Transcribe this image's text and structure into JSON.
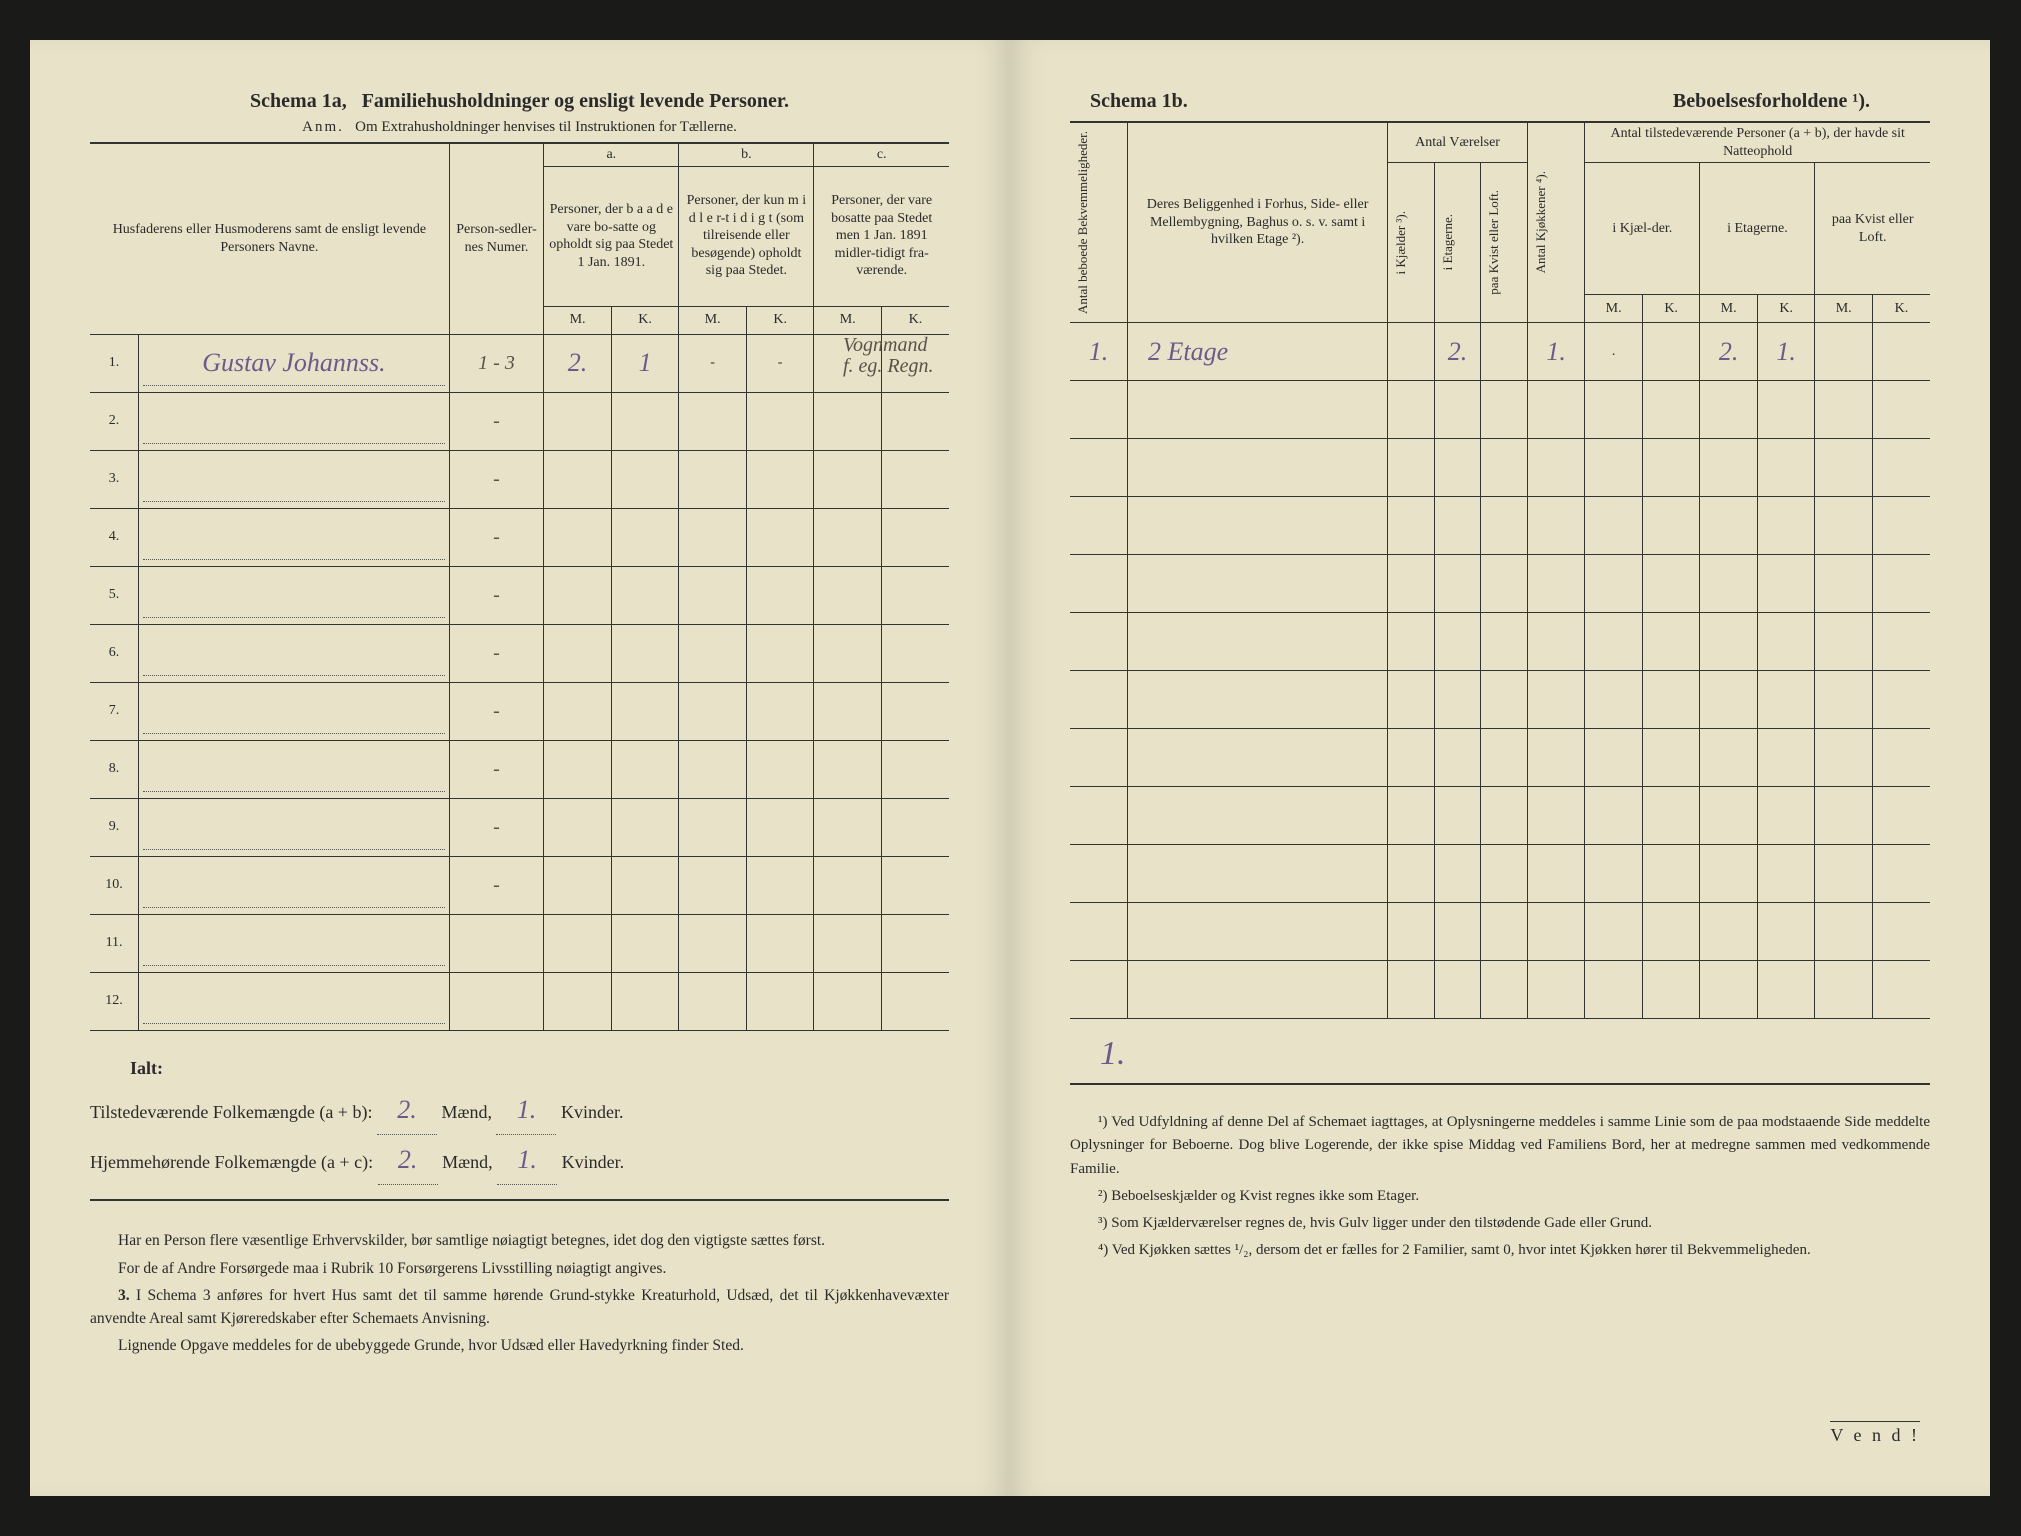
{
  "left": {
    "schema_label": "Schema 1a,",
    "title": "Familiehusholdninger og ensligt levende Personer.",
    "anm_label": "Anm.",
    "anm_text": "Om Extrahusholdninger henvises til Instruktionen for Tællerne.",
    "col_name": "Husfaderens eller Husmoderens samt de ensligt levende Personers Navne.",
    "col_numer": "Person-sedler-nes Numer.",
    "col_a_label": "a.",
    "col_a": "Personer, der b a a d e vare bo-satte og opholdt sig paa Stedet 1 Jan. 1891.",
    "col_b_label": "b.",
    "col_b": "Personer, der kun m i d l e r-t i d i g t (som tilreisende eller besøgende) opholdt sig paa Stedet.",
    "col_c_label": "c.",
    "col_c": "Personer, der vare bosatte paa Stedet men 1 Jan. 1891 midler-tidigt fra-værende.",
    "mk_m": "M.",
    "mk_k": "K.",
    "rows": [
      {
        "n": "1.",
        "name": "Gustav Johannss.",
        "numer": "1 - 3",
        "am": "2.",
        "ak": "1",
        "bm": "-",
        "bk": "-",
        "cm": "-",
        "ck": "-",
        "note1": "Vognmand",
        "note2": "f. eg. Regn."
      },
      {
        "n": "2.",
        "name": "",
        "numer": "-",
        "am": "",
        "ak": "",
        "bm": "",
        "bk": "",
        "cm": "",
        "ck": ""
      },
      {
        "n": "3.",
        "name": "",
        "numer": "-",
        "am": "",
        "ak": "",
        "bm": "",
        "bk": "",
        "cm": "",
        "ck": ""
      },
      {
        "n": "4.",
        "name": "",
        "numer": "-",
        "am": "",
        "ak": "",
        "bm": "",
        "bk": "",
        "cm": "",
        "ck": ""
      },
      {
        "n": "5.",
        "name": "",
        "numer": "-",
        "am": "",
        "ak": "",
        "bm": "",
        "bk": "",
        "cm": "",
        "ck": ""
      },
      {
        "n": "6.",
        "name": "",
        "numer": "-",
        "am": "",
        "ak": "",
        "bm": "",
        "bk": "",
        "cm": "",
        "ck": ""
      },
      {
        "n": "7.",
        "name": "",
        "numer": "-",
        "am": "",
        "ak": "",
        "bm": "",
        "bk": "",
        "cm": "",
        "ck": ""
      },
      {
        "n": "8.",
        "name": "",
        "numer": "-",
        "am": "",
        "ak": "",
        "bm": "",
        "bk": "",
        "cm": "",
        "ck": ""
      },
      {
        "n": "9.",
        "name": "",
        "numer": "-",
        "am": "",
        "ak": "",
        "bm": "",
        "bk": "",
        "cm": "",
        "ck": ""
      },
      {
        "n": "10.",
        "name": "",
        "numer": "-",
        "am": "",
        "ak": "",
        "bm": "",
        "bk": "",
        "cm": "",
        "ck": ""
      },
      {
        "n": "11.",
        "name": "",
        "numer": "",
        "am": "",
        "ak": "",
        "bm": "",
        "bk": "",
        "cm": "",
        "ck": ""
      },
      {
        "n": "12.",
        "name": "",
        "numer": "",
        "am": "",
        "ak": "",
        "bm": "",
        "bk": "",
        "cm": "",
        "ck": ""
      }
    ],
    "ialt": "Ialt:",
    "tilst_label": "Tilstedeværende Folkemængde (a + b):",
    "hjemme_label": "Hjemmehørende Folkemængde (a + c):",
    "maend": "Mænd,",
    "kvinder": "Kvinder.",
    "tilst_m": "2.",
    "tilst_k": "1.",
    "hjem_m": "2.",
    "hjem_k": "1.",
    "foot_p1": "Har en Person flere væsentlige Erhvervskilder, bør samtlige nøiagtigt betegnes, idet dog den vigtigste sættes først.",
    "foot_p2": "For de af Andre Forsørgede maa i Rubrik 10 Forsørgerens Livsstilling nøiagtigt angives.",
    "foot_p3a": "3.",
    "foot_p3": "I Schema 3 anføres for hvert Hus samt det til samme hørende Grund-stykke Kreaturhold, Udsæd, det til Kjøkkenhavevæxter anvendte Areal samt Kjøreredskaber efter Schemaets Anvisning.",
    "foot_p4": "Lignende Opgave meddeles for de ubebyggede Grunde, hvor Udsæd eller Havedyrkning finder Sted."
  },
  "right": {
    "schema_label": "Schema 1b.",
    "title": "Beboelsesforholdene ¹).",
    "col_antal_bekvem": "Antal beboede Bekvemmeligheder.",
    "col_belig": "Deres Beliggenhed i Forhus, Side- eller Mellembygning, Baghus o. s. v. samt i hvilken Etage ²).",
    "col_vaer": "Antal Værelser",
    "col_kjok": "Antal Kjøkkener ⁴).",
    "col_natte": "Antal tilstedeværende Personer (a + b), der havde sit Natteophold",
    "sub_kjaelder": "i Kjælder ³).",
    "sub_etagerne": "i Etagerne.",
    "sub_kvist": "paa Kvist eller Loft.",
    "sub_n_kjael": "i Kjæl-der.",
    "sub_n_etag": "i Etagerne.",
    "sub_n_kvist": "paa Kvist eller Loft.",
    "mk_m": "M.",
    "mk_k": "K.",
    "row1": {
      "bekvem": "1.",
      "belig": "2 Etage",
      "vkj": "",
      "vet": "2.",
      "vkv": "",
      "kjok": "1.",
      "nkm": ".",
      "nkk": "",
      "nem": "2.",
      "nek": "1.",
      "nvm": "",
      "nvk": ""
    },
    "blank_rows": 11,
    "total_mark": "1.",
    "fn1": "¹) Ved Udfyldning af denne Del af Schemaet iagttages, at Oplysningerne meddeles i samme Linie som de paa modstaaende Side meddelte Oplysninger for Beboerne. Dog blive Logerende, der ikke spise Middag ved Familiens Bord, her at medregne sammen med vedkommende Familie.",
    "fn2": "²) Beboelseskjælder og Kvist regnes ikke som Etager.",
    "fn3": "³) Som Kjælderværelser regnes de, hvis Gulv ligger under den tilstødende Gade eller Grund.",
    "fn4": "⁴) Ved Kjøkken sættes ¹/₂, dersom det er fælles for 2 Familier, samt 0, hvor intet Kjøkken hører til Bekvemmeligheden.",
    "vend": "V e n d !"
  },
  "colors": {
    "paper": "#e8e2c8",
    "ink": "#2a2a2a",
    "handwriting": "#6b5a8a"
  }
}
